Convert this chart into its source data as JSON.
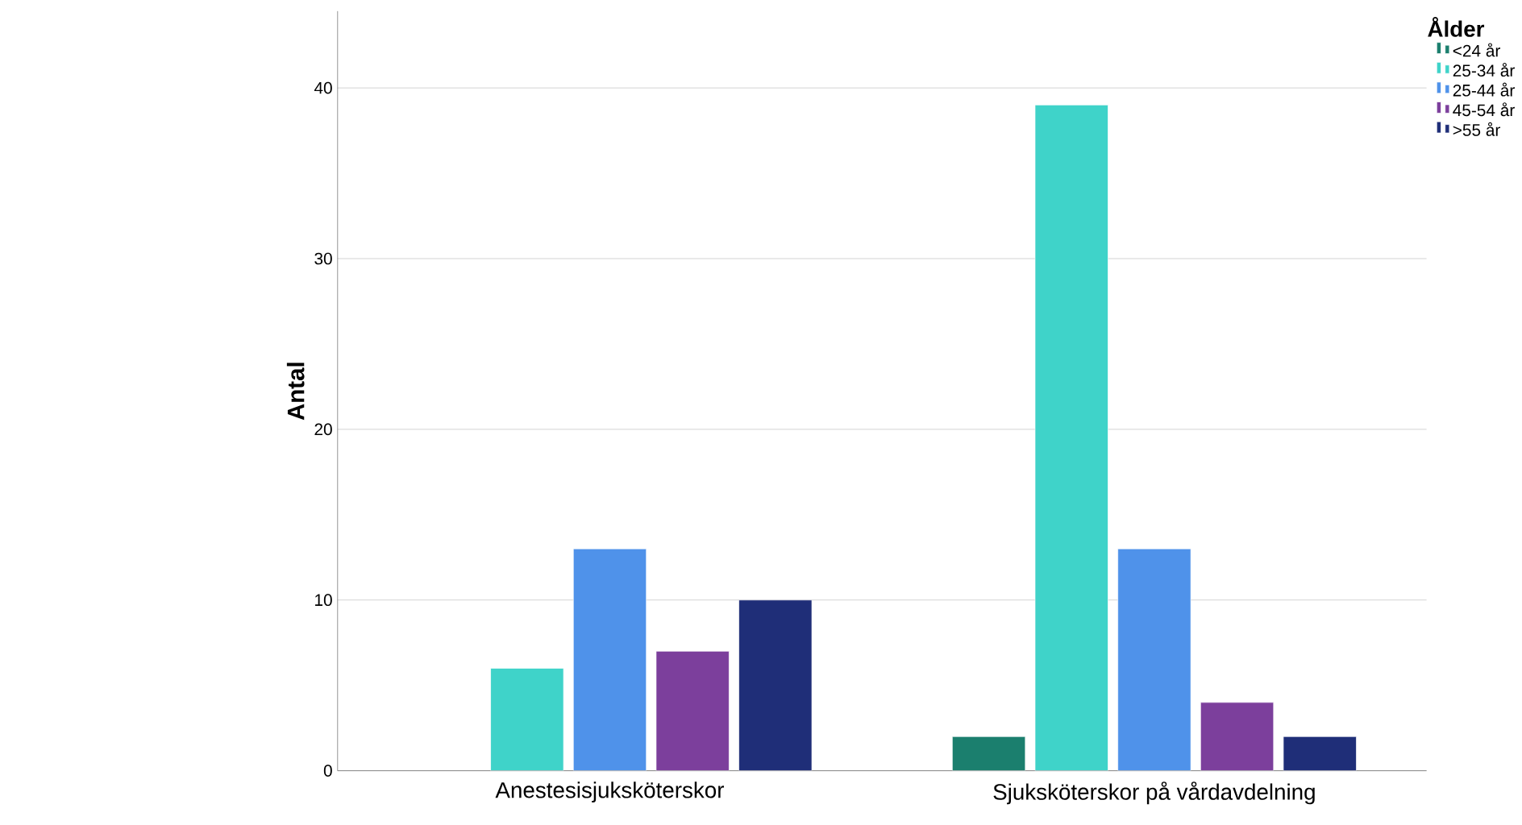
{
  "chart_data": {
    "type": "bar",
    "ylabel": "Antal",
    "legend_title": "Ålder",
    "categories": [
      "Anestesisjuksköterskor",
      "Sjuksköterskor på vårdavdelning"
    ],
    "series": [
      {
        "name": "<24 år",
        "color": "#1b7f6e",
        "values": [
          null,
          2
        ]
      },
      {
        "name": "25-34 år",
        "color": "#3fd3c9",
        "values": [
          6,
          39
        ]
      },
      {
        "name": "25-44 år",
        "color": "#4f92ea",
        "values": [
          13,
          13
        ]
      },
      {
        "name": "45-54 år",
        "color": "#7c3f9c",
        "values": [
          7,
          4
        ]
      },
      {
        "name": ">55 år",
        "color": "#1f2e78",
        "values": [
          10,
          2
        ]
      }
    ],
    "ylim": [
      0,
      44.5
    ],
    "yticks": [
      0,
      10,
      20,
      30,
      40
    ],
    "grid": "y",
    "legend": "top right"
  }
}
